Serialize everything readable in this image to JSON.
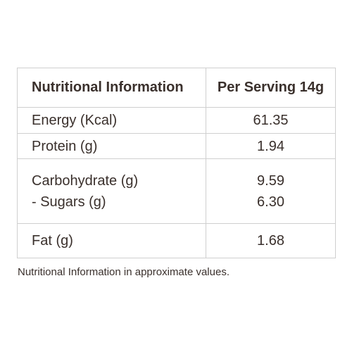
{
  "table": {
    "header": {
      "label": "Nutritional Information",
      "value": "Per Serving 14g"
    },
    "rows": [
      {
        "label": "Energy (Kcal)",
        "value": "61.35"
      },
      {
        "label": "Protein (g)",
        "value": "1.94"
      },
      {
        "label": "Carbohydrate (g)",
        "value": "9.59",
        "sub_label": "- Sugars (g)",
        "sub_value": "6.30"
      },
      {
        "label": "Fat (g)",
        "value": "1.68"
      }
    ]
  },
  "footnote": "Nutritional Information in approximate values."
}
